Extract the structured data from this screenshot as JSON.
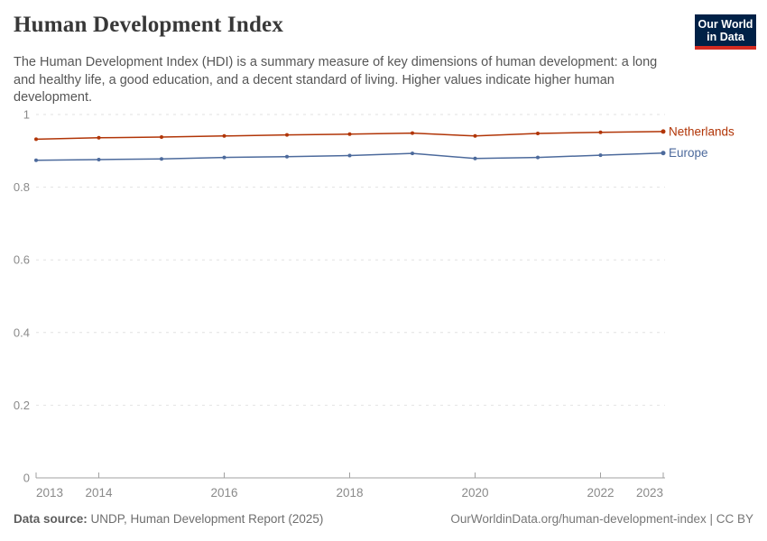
{
  "header": {
    "title": "Human Development Index",
    "subtitle": "The Human Development Index (HDI) is a summary measure of key dimensions of human development: a long and healthy life, a good education, and a decent standard of living. Higher values indicate higher human development.",
    "logo": {
      "line1": "Our World",
      "line2": "in Data",
      "bg_color": "#002147",
      "bar_color": "#d42b21"
    }
  },
  "chart_data": {
    "type": "line",
    "title": "Human Development Index",
    "x": [
      2013,
      2014,
      2015,
      2016,
      2017,
      2018,
      2019,
      2020,
      2021,
      2022,
      2023
    ],
    "series": [
      {
        "name": "Netherlands",
        "color": "#b13507",
        "values": [
          0.932,
          0.936,
          0.938,
          0.941,
          0.944,
          0.946,
          0.949,
          0.941,
          0.948,
          0.951,
          0.953
        ]
      },
      {
        "name": "Europe",
        "color": "#4c6a9c",
        "values": [
          0.874,
          0.876,
          0.878,
          0.882,
          0.884,
          0.887,
          0.893,
          0.879,
          0.882,
          0.888,
          0.894
        ]
      }
    ],
    "xlabel": "",
    "ylabel": "",
    "xlim": [
      2013,
      2023
    ],
    "ylim": [
      0,
      1
    ],
    "y_ticks": [
      0,
      0.2,
      0.4,
      0.6,
      0.8,
      1
    ],
    "x_ticks": [
      2013,
      2014,
      2016,
      2018,
      2020,
      2022,
      2023
    ],
    "grid": "horizontal-dashed",
    "legend_position": "end-of-line-labels",
    "colors": {
      "gridline": "#e2e2e2",
      "axis_line": "#a1a1a1",
      "tick_label": "#8a8a8a"
    }
  },
  "footer": {
    "datasource_label": "Data source:",
    "datasource_value": "UNDP, Human Development Report (2025)",
    "credit": "OurWorldinData.org/human-development-index | CC BY"
  }
}
